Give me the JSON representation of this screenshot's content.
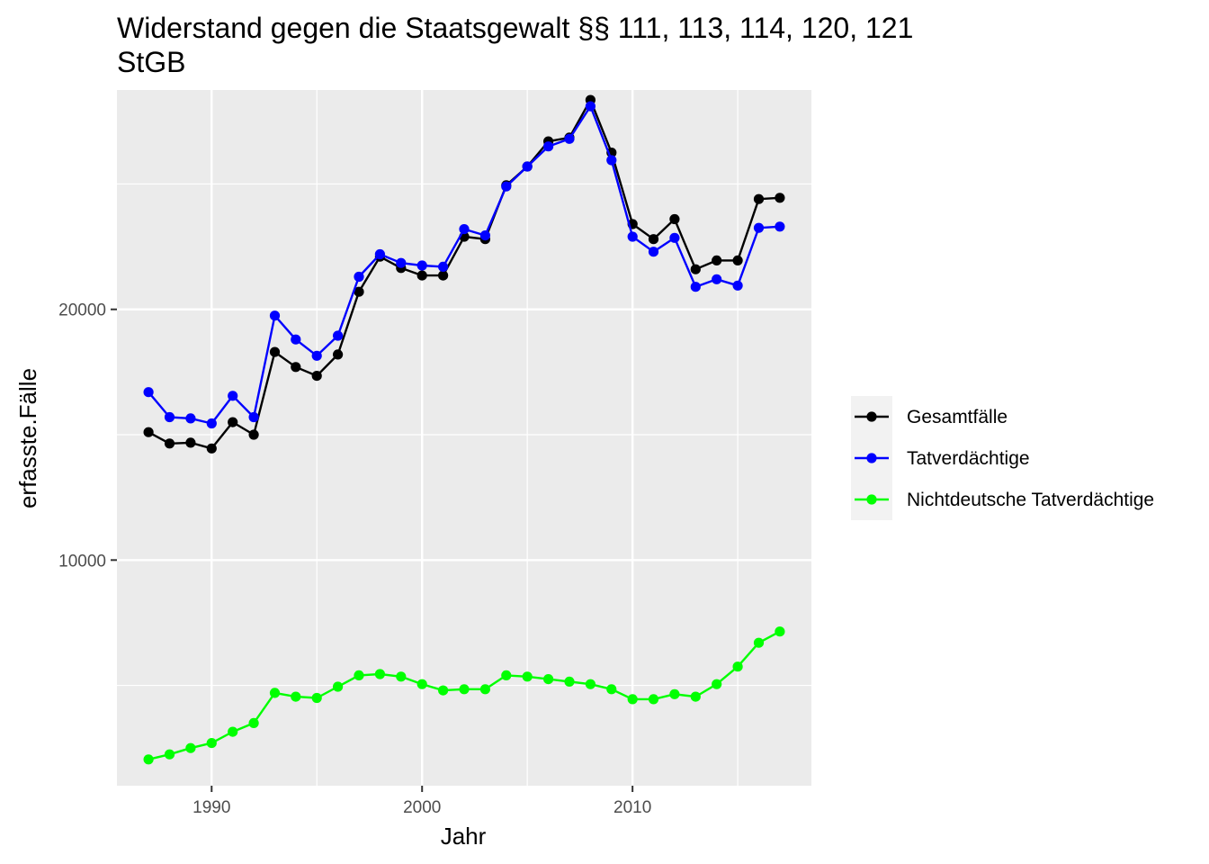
{
  "chart_data": {
    "type": "line",
    "title": "Widerstand gegen die Staatsgewalt §§ 111, 113, 114, 120, 121 StGB",
    "title_lines": [
      "Widerstand gegen die Staatsgewalt §§ 111, 113, 114, 120, 121",
      "StGB"
    ],
    "xlabel": "Jahr",
    "ylabel": "erfasste.Fälle",
    "xlim": [
      1985.5,
      2018.5
    ],
    "ylim": [
      1000,
      28750
    ],
    "x_ticks": [
      1990,
      2000,
      2010
    ],
    "x_tick_labels": [
      "1990",
      "2000",
      "2010"
    ],
    "y_ticks": [
      10000,
      20000
    ],
    "y_tick_labels": [
      "10000",
      "20000"
    ],
    "grid": true,
    "legend_position": "right",
    "background": "#ebebeb",
    "grid_color": "#ffffff",
    "x": [
      1987,
      1988,
      1989,
      1990,
      1991,
      1992,
      1993,
      1994,
      1995,
      1996,
      1997,
      1998,
      1999,
      2000,
      2001,
      2002,
      2003,
      2004,
      2005,
      2006,
      2007,
      2008,
      2009,
      2010,
      2011,
      2012,
      2013,
      2014,
      2015,
      2016,
      2017
    ],
    "series": [
      {
        "name": "Gesamtfälle",
        "color": "#000000",
        "values": [
          15100,
          14650,
          14680,
          14450,
          15500,
          15000,
          18300,
          17700,
          17350,
          18200,
          20700,
          22100,
          21650,
          21350,
          21350,
          22900,
          22800,
          24950,
          25700,
          26700,
          26850,
          28350,
          26250,
          23400,
          22800,
          23600,
          21600,
          21950,
          21950,
          24400,
          24450
        ]
      },
      {
        "name": "Tatverdächtige",
        "color": "#0000ff",
        "values": [
          16700,
          15700,
          15650,
          15450,
          16550,
          15700,
          19750,
          18800,
          18150,
          18950,
          21300,
          22200,
          21850,
          21750,
          21700,
          23200,
          22950,
          24900,
          25700,
          26500,
          26800,
          28100,
          25950,
          22900,
          22300,
          22850,
          20900,
          21200,
          20950,
          23250,
          23300
        ]
      },
      {
        "name": "Nichtdeutsche Tatverdächtige",
        "color": "#00ff00",
        "values": [
          2050,
          2250,
          2500,
          2700,
          3150,
          3500,
          4700,
          4550,
          4500,
          4950,
          5400,
          5450,
          5350,
          5050,
          4800,
          4850,
          4850,
          5400,
          5350,
          5250,
          5150,
          5050,
          4850,
          4450,
          4450,
          4650,
          4550,
          5050,
          5750,
          6700,
          7150
        ]
      }
    ]
  }
}
